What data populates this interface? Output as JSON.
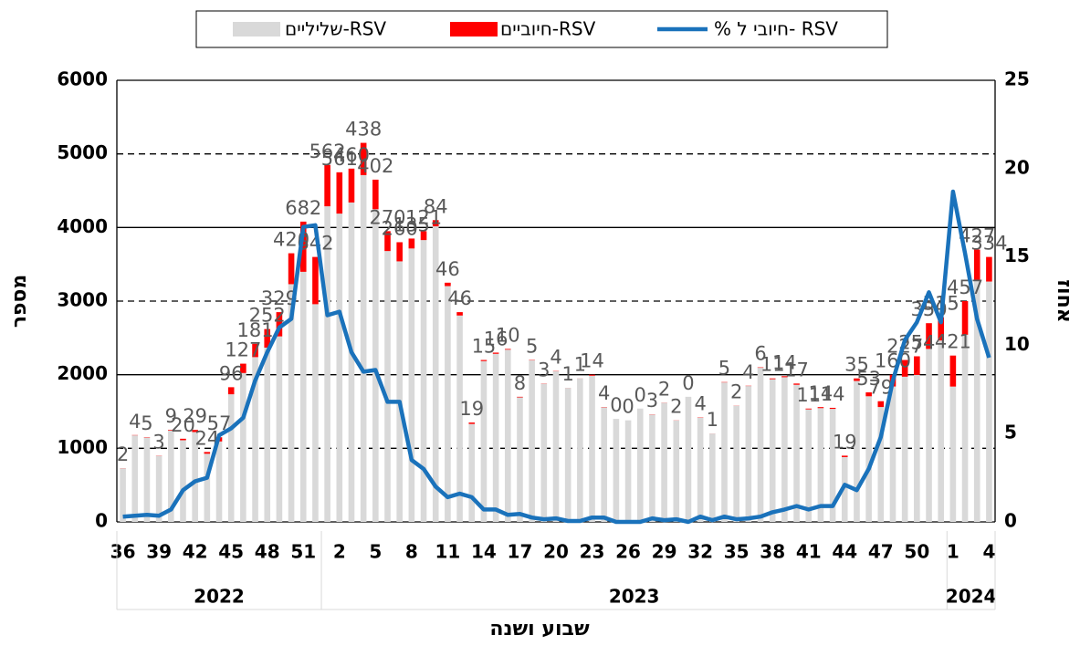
{
  "chart_data": {
    "type": "bar-line",
    "categories": [
      "36",
      null,
      null,
      "39",
      null,
      null,
      "42",
      null,
      null,
      "45",
      null,
      null,
      "48",
      null,
      null,
      "51",
      null,
      null,
      "2",
      null,
      null,
      "5",
      null,
      null,
      "8",
      null,
      null,
      "11",
      null,
      null,
      "14",
      null,
      null,
      "17",
      null,
      null,
      "20",
      null,
      null,
      "23",
      null,
      null,
      "26",
      null,
      null,
      "29",
      null,
      null,
      "32",
      null,
      null,
      "35",
      null,
      null,
      "38",
      null,
      null,
      "41",
      null,
      null,
      "44",
      null,
      null,
      "47",
      null,
      null,
      "50",
      null,
      null,
      "1",
      null,
      null,
      "4"
    ],
    "groups": [
      {
        "label": "2022",
        "count": 17
      },
      {
        "label": "2023",
        "count": 52
      },
      {
        "label": "2024",
        "count": 4
      }
    ],
    "series": [
      {
        "name": "שליליים-RSV",
        "color": "#d9d9d9",
        "kind": "bar",
        "values": [
          728,
          1176,
          1145,
          897,
          1241,
          1110,
          1221,
          926,
          1093,
          1734,
          2023,
          2239,
          2368,
          2521,
          3230,
          3398,
          2958,
          4288,
          4189,
          4340,
          4712,
          4248,
          3680,
          3540,
          3715,
          3829,
          4016,
          3204,
          2804,
          1331,
          2185,
          2284,
          2340,
          1692,
          2195,
          1877,
          2046,
          1819,
          1949,
          1986,
          1556,
          1400,
          1380,
          1540,
          1457,
          1618,
          1378,
          1700,
          1416,
          1199,
          1895,
          1578,
          1846,
          2094,
          1939,
          1966,
          1863,
          1529,
          1546,
          1536,
          881,
          1915,
          1707,
          1561,
          1840,
          1973,
          1996,
          2350,
          2465,
          1839,
          2543,
          3273,
          3266
        ]
      },
      {
        "name": "חיוביים-RSV",
        "color": "#ff0000",
        "kind": "bar",
        "labels": true,
        "values": [
          2,
          4,
          5,
          3,
          9,
          20,
          29,
          24,
          57,
          96,
          127,
          181,
          252,
          329,
          420,
          682,
          642,
          562,
          561,
          460,
          438,
          402,
          270,
          260,
          135,
          121,
          84,
          46,
          46,
          19,
          15,
          16,
          10,
          8,
          5,
          3,
          4,
          1,
          1,
          14,
          4,
          0,
          0,
          0,
          3,
          2,
          2,
          0,
          4,
          1,
          5,
          2,
          4,
          6,
          11,
          14,
          17,
          11,
          14,
          14,
          19,
          35,
          53,
          79,
          160,
          227,
          254,
          350,
          315,
          421,
          457,
          427,
          334
        ]
      },
      {
        "name": "% חיובי ל- RSV",
        "color": "#1a72bb",
        "kind": "line",
        "axis": "y2",
        "values": [
          0.3,
          0.35,
          0.4,
          0.35,
          0.7,
          1.8,
          2.3,
          2.5,
          4.9,
          5.3,
          5.9,
          8.0,
          9.6,
          11.0,
          11.5,
          16.7,
          16.8,
          11.7,
          11.9,
          9.6,
          8.5,
          8.6,
          6.8,
          6.8,
          3.5,
          3.0,
          2.0,
          1.4,
          1.6,
          1.4,
          0.7,
          0.7,
          0.4,
          0.45,
          0.25,
          0.15,
          0.2,
          0.05,
          0.05,
          0.25,
          0.25,
          0,
          0,
          0,
          0.2,
          0.1,
          0.15,
          0,
          0.3,
          0.1,
          0.3,
          0.15,
          0.2,
          0.3,
          0.55,
          0.7,
          0.9,
          0.7,
          0.9,
          0.9,
          2.1,
          1.8,
          3.0,
          4.8,
          8.0,
          10.3,
          11.3,
          13.0,
          11.3,
          18.7,
          15.2,
          11.5,
          9.3
        ]
      }
    ],
    "ylim": [
      0,
      6000
    ],
    "yticks": [
      0,
      1000,
      2000,
      3000,
      4000,
      5000,
      6000
    ],
    "y2lim": [
      0,
      25
    ],
    "y2ticks": [
      0,
      5,
      10,
      15,
      20,
      25
    ],
    "ylabel": "מספר",
    "y2label": "אחוז",
    "xlabel": "שבוע ושנה",
    "grid": true
  }
}
